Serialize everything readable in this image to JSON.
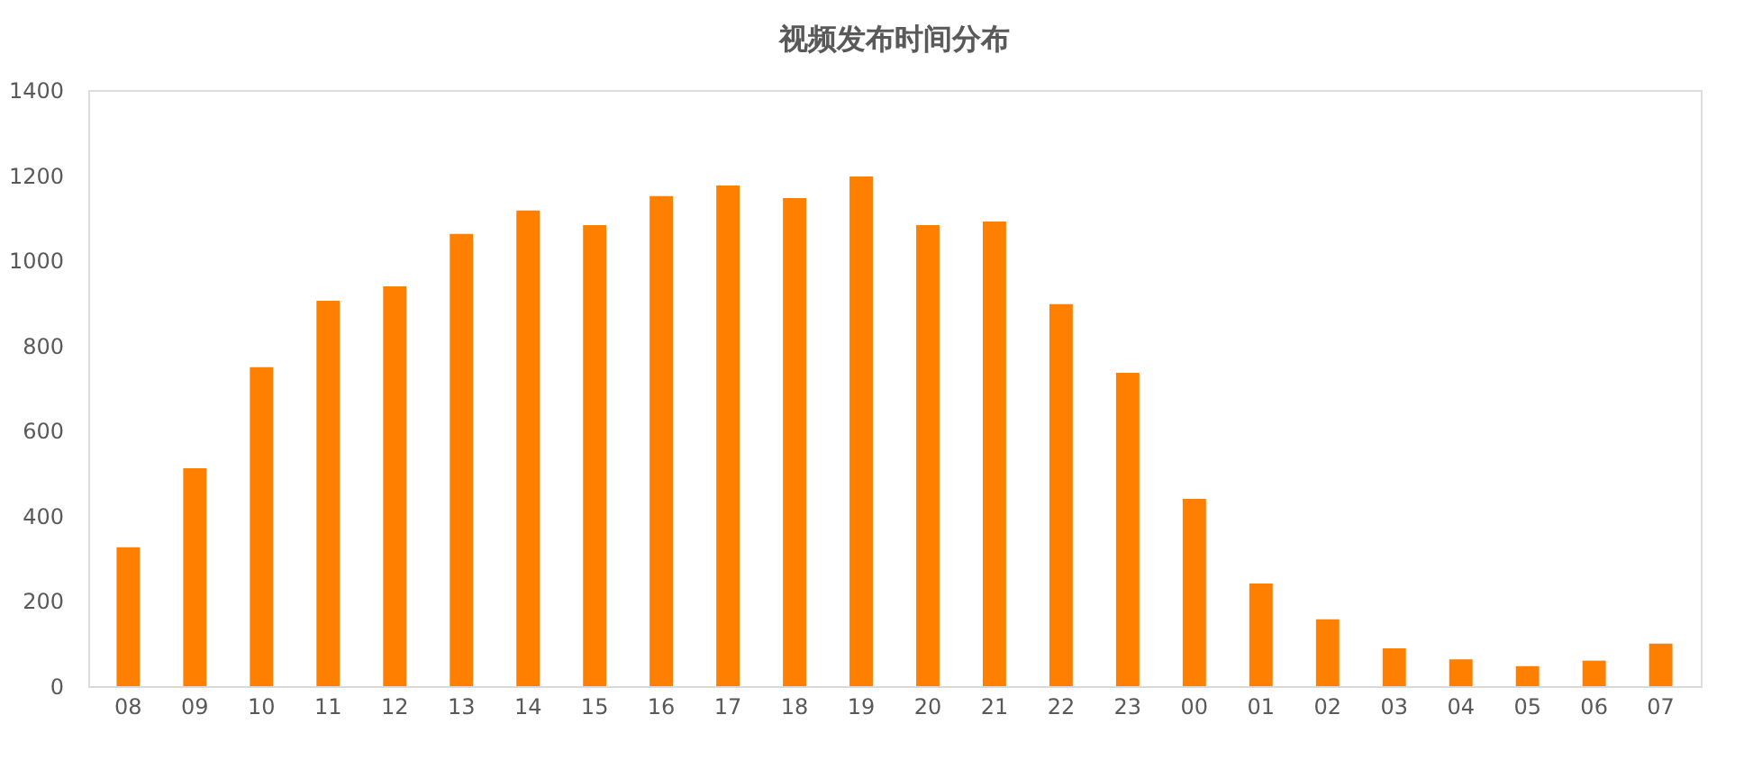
{
  "chart_data": {
    "type": "bar",
    "title": "视频发布时间分布",
    "categories": [
      "08",
      "09",
      "10",
      "11",
      "12",
      "13",
      "14",
      "15",
      "16",
      "17",
      "18",
      "19",
      "20",
      "21",
      "22",
      "23",
      "00",
      "01",
      "02",
      "03",
      "04",
      "05",
      "06",
      "07"
    ],
    "values": [
      326,
      512,
      749,
      905,
      939,
      1062,
      1117,
      1083,
      1151,
      1176,
      1146,
      1197,
      1083,
      1091,
      897,
      736,
      440,
      241,
      157,
      89,
      63,
      47,
      60,
      100
    ],
    "color": "#ff7f00",
    "ylim": [
      0,
      1400
    ],
    "yticks": [
      0,
      200,
      400,
      600,
      800,
      1000,
      1200,
      1400
    ],
    "grid": false
  }
}
